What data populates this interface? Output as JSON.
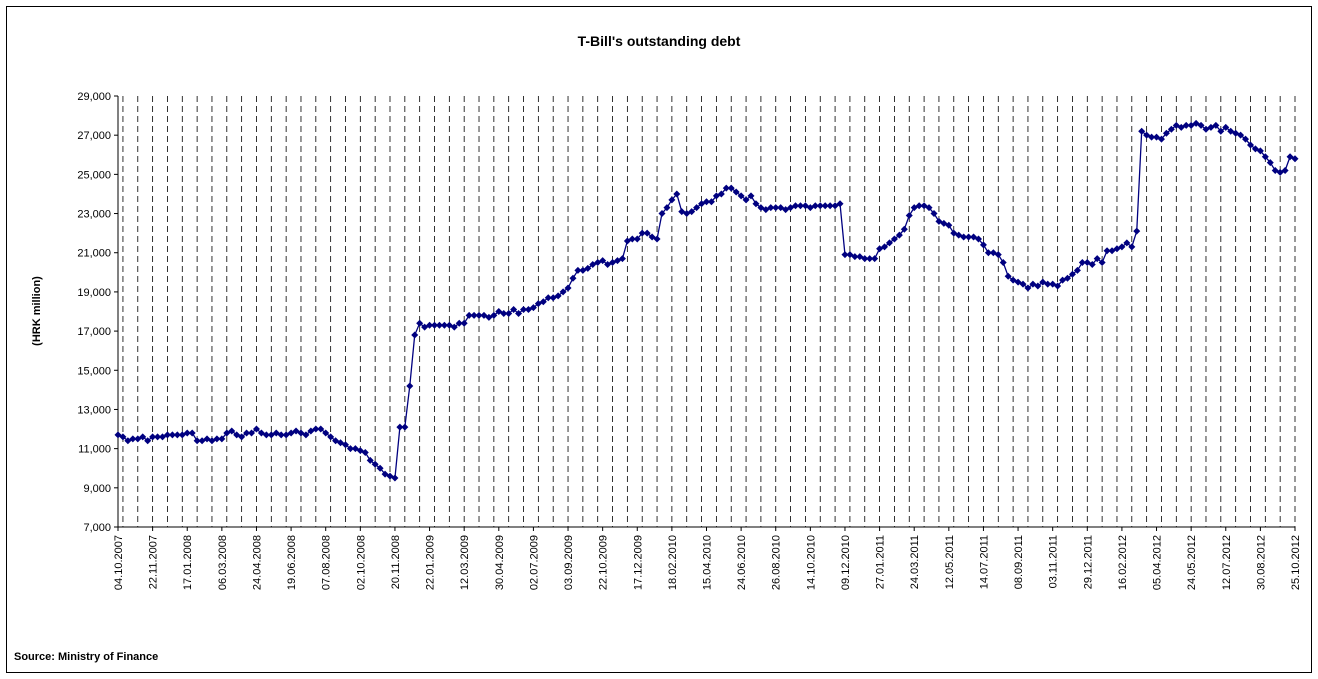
{
  "chart_data": {
    "type": "line",
    "title": "T-Bill's outstanding debt",
    "y_label": "(HRK million)",
    "source": "Source: Ministry of Finance",
    "categories": [
      "04.10.2007",
      null,
      null,
      null,
      null,
      null,
      null,
      "22.11.2007",
      null,
      null,
      null,
      null,
      null,
      null,
      "17.01.2008",
      null,
      null,
      null,
      null,
      null,
      null,
      "06.03.2008",
      null,
      null,
      null,
      null,
      null,
      null,
      "24.04.2008",
      null,
      null,
      null,
      null,
      null,
      null,
      "19.06.2008",
      null,
      null,
      null,
      null,
      null,
      null,
      "07.08.2008",
      null,
      null,
      null,
      null,
      null,
      null,
      "02.10.2008",
      null,
      null,
      null,
      null,
      null,
      null,
      "20.11.2008",
      null,
      null,
      null,
      null,
      null,
      null,
      "22.01.2009",
      null,
      null,
      null,
      null,
      null,
      null,
      "12.03.2009",
      null,
      null,
      null,
      null,
      null,
      null,
      "30.04.2009",
      null,
      null,
      null,
      null,
      null,
      null,
      "02.07.2009",
      null,
      null,
      null,
      null,
      null,
      null,
      "03.09.2009",
      null,
      null,
      null,
      null,
      null,
      null,
      "22.10.2009",
      null,
      null,
      null,
      null,
      null,
      null,
      "17.12.2009",
      null,
      null,
      null,
      null,
      null,
      null,
      "18.02.2010",
      null,
      null,
      null,
      null,
      null,
      null,
      "15.04.2010",
      null,
      null,
      null,
      null,
      null,
      null,
      "24.06.2010",
      null,
      null,
      null,
      null,
      null,
      null,
      "26.08.2010",
      null,
      null,
      null,
      null,
      null,
      null,
      "14.10.2010",
      null,
      null,
      null,
      null,
      null,
      null,
      "09.12.2010",
      null,
      null,
      null,
      null,
      null,
      null,
      "27.01.2011",
      null,
      null,
      null,
      null,
      null,
      null,
      "24.03.2011",
      null,
      null,
      null,
      null,
      null,
      null,
      "12.05.2011",
      null,
      null,
      null,
      null,
      null,
      null,
      "14.07.2011",
      null,
      null,
      null,
      null,
      null,
      null,
      "08.09.2011",
      null,
      null,
      null,
      null,
      null,
      null,
      "03.11.2011",
      null,
      null,
      null,
      null,
      null,
      null,
      "29.12.2011",
      null,
      null,
      null,
      null,
      null,
      null,
      "16.02.2012",
      null,
      null,
      null,
      null,
      null,
      null,
      "05.04.2012",
      null,
      null,
      null,
      null,
      null,
      null,
      "24.05.2012",
      null,
      null,
      null,
      null,
      null,
      null,
      "12.07.2012",
      null,
      null,
      null,
      null,
      null,
      null,
      "30.08.2012",
      null,
      null,
      null,
      null,
      null,
      null,
      "25.10.2012"
    ],
    "series": [
      {
        "name": "T-Bill's outstanding debt",
        "color": "#000080",
        "values": [
          11700,
          11600,
          11400,
          11500,
          11500,
          11600,
          11400,
          11600,
          11600,
          11600,
          11700,
          11700,
          11700,
          11700,
          11800,
          11800,
          11400,
          11400,
          11500,
          11400,
          11500,
          11500,
          11800,
          11900,
          11700,
          11600,
          11800,
          11800,
          12000,
          11800,
          11700,
          11700,
          11800,
          11700,
          11700,
          11800,
          11900,
          11800,
          11700,
          11900,
          12000,
          12000,
          11800,
          11600,
          11400,
          11300,
          11200,
          11000,
          11000,
          10900,
          10800,
          10400,
          10200,
          10000,
          9700,
          9600,
          9500,
          12100,
          12100,
          14200,
          16800,
          17400,
          17200,
          17300,
          17300,
          17300,
          17300,
          17300,
          17200,
          17400,
          17400,
          17800,
          17800,
          17800,
          17800,
          17700,
          17800,
          18000,
          17900,
          17900,
          18100,
          17900,
          18100,
          18100,
          18200,
          18400,
          18500,
          18700,
          18700,
          18800,
          19000,
          19200,
          19700,
          20100,
          20100,
          20200,
          20400,
          20500,
          20600,
          20400,
          20500,
          20600,
          20700,
          21600,
          21700,
          21700,
          22000,
          22000,
          21800,
          21700,
          23000,
          23300,
          23700,
          24000,
          23100,
          23000,
          23100,
          23300,
          23500,
          23600,
          23600,
          23900,
          24000,
          24300,
          24300,
          24100,
          23900,
          23700,
          23900,
          23500,
          23300,
          23200,
          23300,
          23300,
          23300,
          23200,
          23300,
          23400,
          23400,
          23400,
          23300,
          23400,
          23400,
          23400,
          23400,
          23400,
          23500,
          20900,
          20900,
          20800,
          20800,
          20700,
          20700,
          20700,
          21200,
          21300,
          21500,
          21700,
          21900,
          22200,
          22900,
          23300,
          23400,
          23400,
          23300,
          23000,
          22600,
          22500,
          22400,
          22000,
          21900,
          21800,
          21800,
          21800,
          21700,
          21400,
          21000,
          21000,
          20900,
          20500,
          19800,
          19600,
          19500,
          19400,
          19200,
          19400,
          19300,
          19500,
          19400,
          19400,
          19300,
          19600,
          19700,
          19900,
          20100,
          20500,
          20500,
          20400,
          20700,
          20500,
          21100,
          21100,
          21200,
          21300,
          21500,
          21300,
          22100,
          27200,
          27000,
          26900,
          26900,
          26800,
          27100,
          27300,
          27500,
          27400,
          27500,
          27500,
          27600,
          27500,
          27300,
          27400,
          27500,
          27200,
          27400,
          27200,
          27100,
          27000,
          26800,
          26500,
          26300,
          26200,
          25900,
          25600,
          25200,
          25100,
          25200,
          25900,
          25800
        ]
      }
    ],
    "ylim": [
      7000,
      29000
    ],
    "yticks": [
      {
        "value": 7000,
        "label": "7,000"
      },
      {
        "value": 9000,
        "label": "9,000"
      },
      {
        "value": 11000,
        "label": "11,000"
      },
      {
        "value": 13000,
        "label": "13,000"
      },
      {
        "value": 15000,
        "label": "15,000"
      },
      {
        "value": 17000,
        "label": "17,000"
      },
      {
        "value": 19000,
        "label": "19,000"
      },
      {
        "value": 21000,
        "label": "21,000"
      },
      {
        "value": 23000,
        "label": "23,000"
      },
      {
        "value": 25000,
        "label": "25,000"
      },
      {
        "value": 27000,
        "label": "27,000"
      },
      {
        "value": 29000,
        "label": "29,000"
      }
    ],
    "grid": true
  }
}
